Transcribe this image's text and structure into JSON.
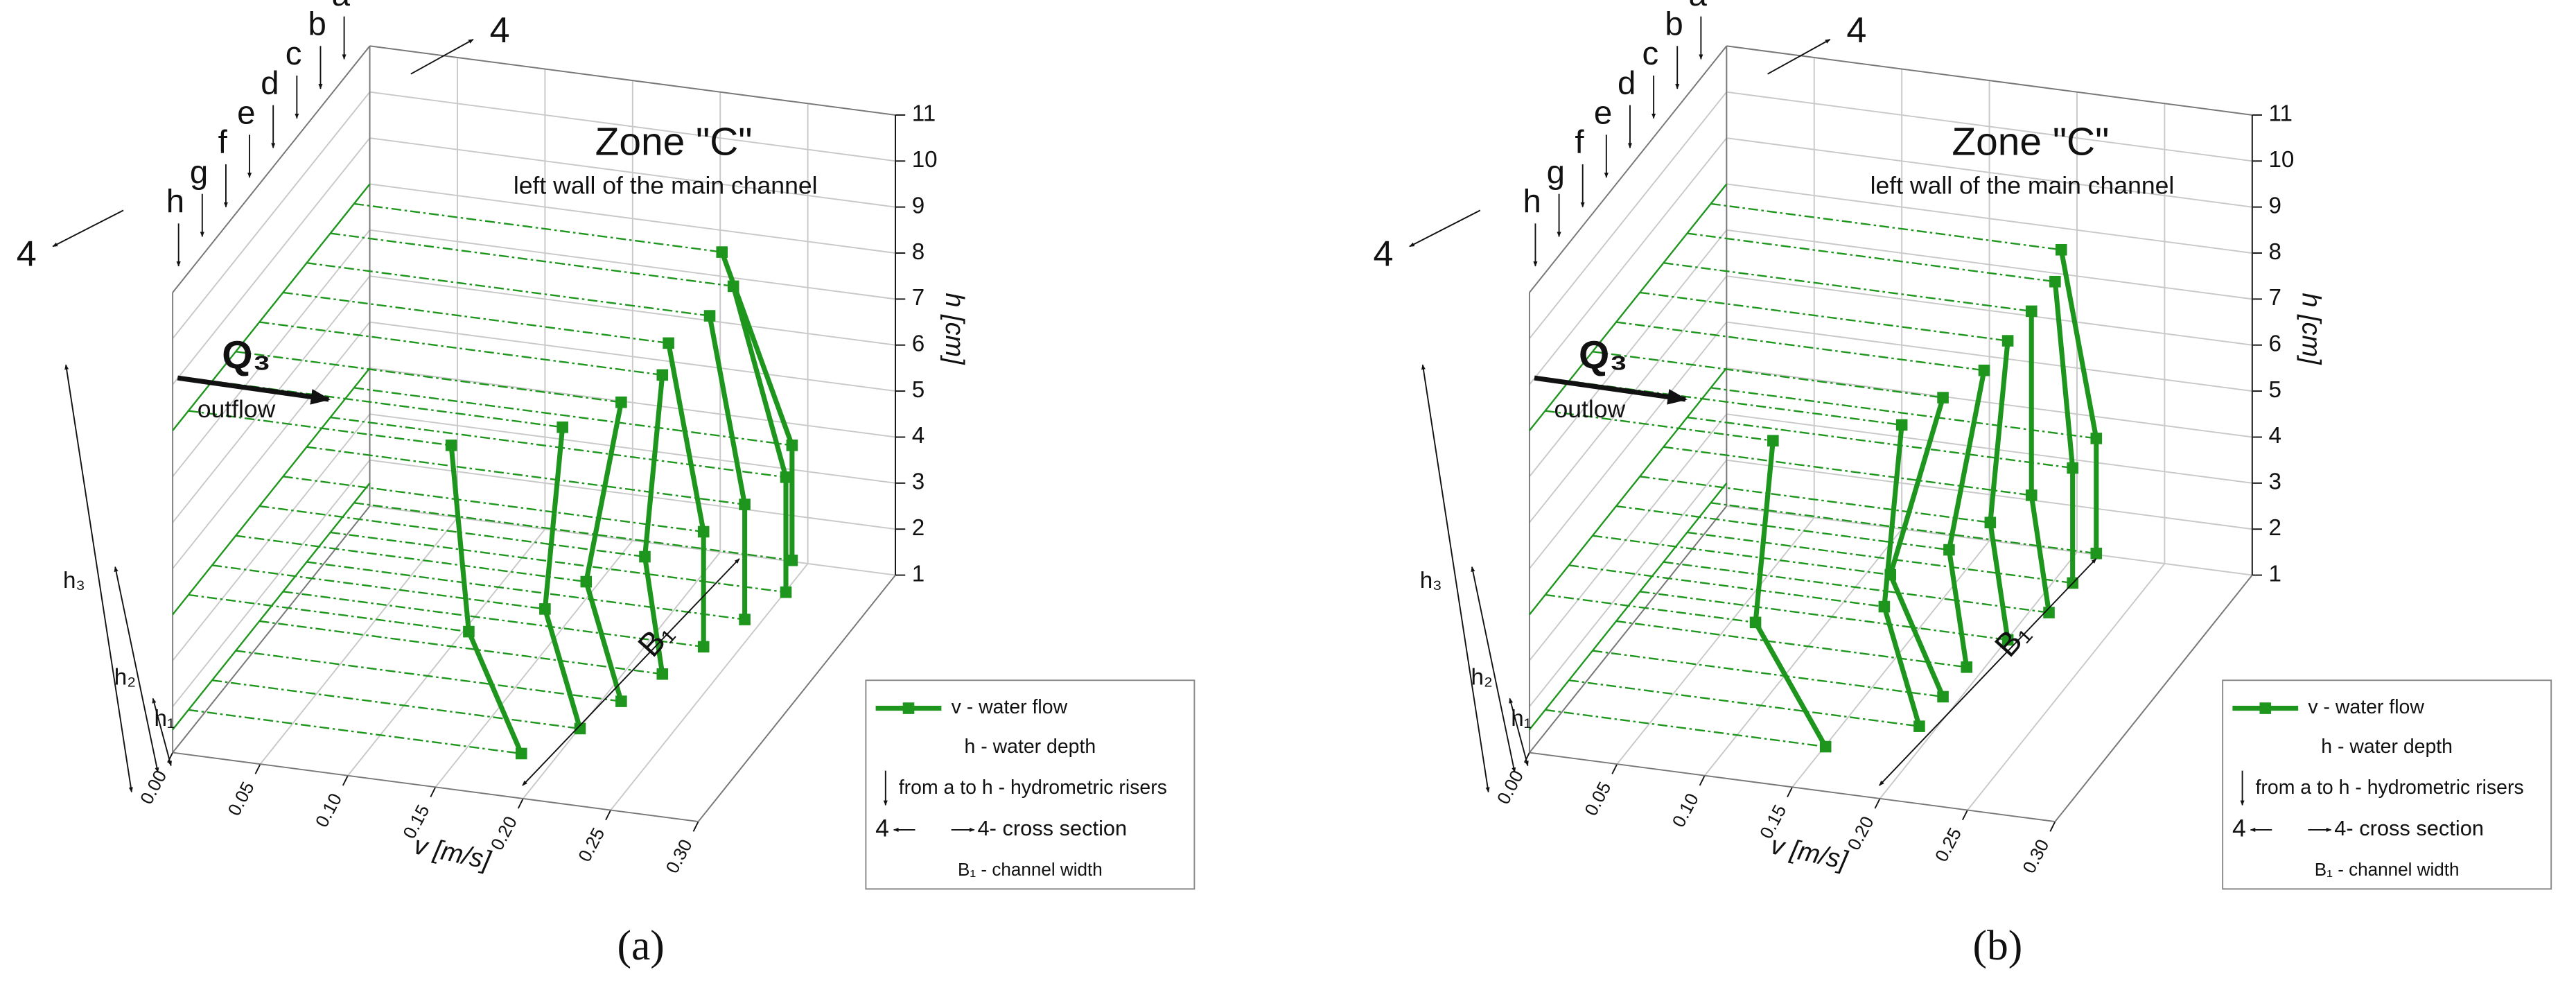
{
  "chart_data": [
    {
      "type": "profile3d",
      "panel_label": "(a)",
      "title": "Zone \"C\"",
      "subtitle": "left wall of the main channel",
      "ylabel": "h [cm]",
      "xlabel": "v [m/s]",
      "ylim": [
        1,
        11
      ],
      "yticks": [
        1,
        2,
        3,
        4,
        5,
        6,
        7,
        8,
        9,
        10,
        11
      ],
      "xlim": [
        0,
        0.3
      ],
      "xticks": [
        {
          "value": 0,
          "label": "0.00"
        },
        {
          "value": 0.05,
          "label": "0.05"
        },
        {
          "value": 0.1,
          "label": "0.10"
        },
        {
          "value": 0.15,
          "label": "0.15"
        },
        {
          "value": 0.2,
          "label": "0.20"
        },
        {
          "value": 0.25,
          "label": "0.25"
        },
        {
          "value": 0.3,
          "label": "0.30"
        }
      ],
      "color": "#1e961e",
      "series": [
        {
          "name": "h",
          "x": [
            0.15,
            0.16,
            0.19
          ],
          "values": [
            8.0,
            4.0,
            1.5
          ]
        },
        {
          "name": "g",
          "x": [
            0.2,
            0.19,
            0.21
          ],
          "values": [
            8.0,
            4.0,
            1.5
          ]
        },
        {
          "name": "f",
          "x": [
            0.22,
            0.2,
            0.22
          ],
          "values": [
            8.0,
            4.0,
            1.5
          ]
        },
        {
          "name": "e",
          "x": [
            0.23,
            0.22,
            0.23
          ],
          "values": [
            8.0,
            4.0,
            1.5
          ]
        },
        {
          "name": "d",
          "x": [
            0.22,
            0.24,
            0.24
          ],
          "values": [
            8.0,
            4.0,
            1.5
          ]
        },
        {
          "name": "c",
          "x": [
            0.23,
            0.25,
            0.25
          ],
          "values": [
            8.0,
            4.0,
            1.5
          ]
        },
        {
          "name": "b",
          "x": [
            0.23,
            0.26,
            0.26
          ],
          "values": [
            8.0,
            4.0,
            1.5
          ]
        },
        {
          "name": "a",
          "x": [
            0.21,
            0.25,
            0.25
          ],
          "values": [
            8.0,
            4.0,
            1.5
          ]
        }
      ],
      "annotations": {
        "flow": "Q₃",
        "flow_label": "outflow",
        "section": "4",
        "h1": "h₁",
        "h2": "h₂",
        "h3": "h₃",
        "width": "B₁"
      },
      "legend": {
        "flow": "v - water flow",
        "depth": "h - water depth",
        "risers": "from a to h - hydrometric risers",
        "section_left": "4",
        "section_right": "4- cross section",
        "width": "B₁ - channel width"
      }
    },
    {
      "type": "profile3d",
      "panel_label": "(b)",
      "title": "Zone \"C\"",
      "subtitle": "left wall of the main channel",
      "ylabel": "h [cm]",
      "xlabel": "v [m/s]",
      "ylim": [
        1,
        11
      ],
      "yticks": [
        1,
        2,
        3,
        4,
        5,
        6,
        7,
        8,
        9,
        10,
        11
      ],
      "xlim": [
        0,
        0.3
      ],
      "xticks": [
        {
          "value": 0,
          "label": "0.00"
        },
        {
          "value": 0.05,
          "label": "0.05"
        },
        {
          "value": 0.1,
          "label": "0.10"
        },
        {
          "value": 0.15,
          "label": "0.15"
        },
        {
          "value": 0.2,
          "label": "0.20"
        },
        {
          "value": 0.25,
          "label": "0.25"
        },
        {
          "value": 0.3,
          "label": "0.30"
        }
      ],
      "color": "#1e961e",
      "series": [
        {
          "name": "h",
          "x": [
            0.13,
            0.12,
            0.16
          ],
          "values": [
            8.0,
            4.0,
            1.5
          ]
        },
        {
          "name": "g",
          "x": [
            0.19,
            0.18,
            0.2
          ],
          "values": [
            8.0,
            4.0,
            1.5
          ]
        },
        {
          "name": "f",
          "x": [
            0.2,
            0.17,
            0.2
          ],
          "values": [
            8.0,
            4.0,
            1.5
          ]
        },
        {
          "name": "e",
          "x": [
            0.21,
            0.19,
            0.2
          ],
          "values": [
            8.0,
            4.0,
            1.5
          ]
        },
        {
          "name": "d",
          "x": [
            0.21,
            0.2,
            0.21
          ],
          "values": [
            8.0,
            4.0,
            1.5
          ]
        },
        {
          "name": "c",
          "x": [
            0.21,
            0.21,
            0.22
          ],
          "values": [
            8.0,
            4.0,
            1.5
          ]
        },
        {
          "name": "b",
          "x": [
            0.21,
            0.22,
            0.22
          ],
          "values": [
            8.0,
            4.0,
            1.5
          ]
        },
        {
          "name": "a",
          "x": [
            0.2,
            0.22,
            0.22
          ],
          "values": [
            8.0,
            4.0,
            1.5
          ]
        }
      ],
      "annotations": {
        "flow": "Q₃",
        "flow_label": "outlow",
        "section": "4",
        "h1": "h₁",
        "h2": "h₂",
        "h3": "h₃",
        "width": "B₁"
      },
      "legend": {
        "flow": "v - water flow",
        "depth": "h - water depth",
        "risers": "from a to h - hydrometric risers",
        "section_left": "4",
        "section_right": "4- cross section",
        "width": "B₁ - channel width"
      }
    }
  ]
}
